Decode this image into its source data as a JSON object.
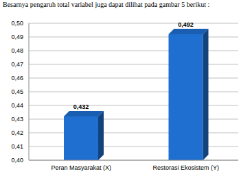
{
  "chart_data": {
    "type": "bar",
    "title": "Besarnya pengaruh total variabel juga dapat dilihat pada gambar 5 berikut :",
    "categories": [
      "Peran Masyarakat (X)",
      "Restorasi Ekosistem (Y)"
    ],
    "values": [
      0.432,
      0.492
    ],
    "value_labels": [
      "0,432",
      "0,492"
    ],
    "data_labels": true,
    "color": "#1f6fd0",
    "ylim": [
      0.4,
      0.5
    ],
    "yticks": [
      {
        "value": 0.4,
        "label": "0,40"
      },
      {
        "value": 0.41,
        "label": "0,41"
      },
      {
        "value": 0.42,
        "label": "0,42"
      },
      {
        "value": 0.43,
        "label": "0,43"
      },
      {
        "value": 0.44,
        "label": "0,44"
      },
      {
        "value": 0.45,
        "label": "0,45"
      },
      {
        "value": 0.46,
        "label": "0,46"
      },
      {
        "value": 0.47,
        "label": "0,47"
      },
      {
        "value": 0.48,
        "label": "0,48"
      },
      {
        "value": 0.49,
        "label": "0,49"
      },
      {
        "value": 0.5,
        "label": "0,50"
      }
    ],
    "grid": true
  }
}
